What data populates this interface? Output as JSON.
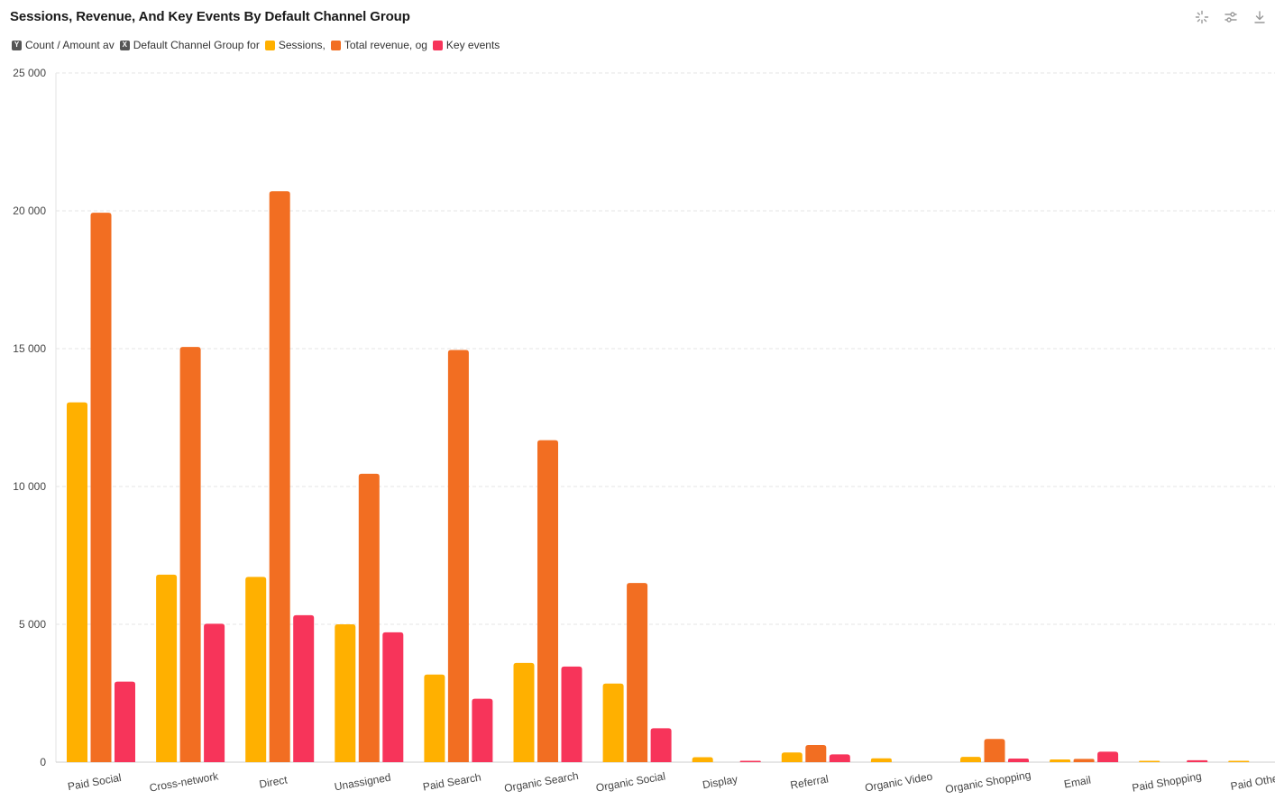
{
  "header": {
    "title": "Sessions, Revenue, And Key Events By Default Channel Group"
  },
  "toolbar": {
    "icons": [
      "sparkle-icon",
      "filter-sliders-icon",
      "download-icon"
    ]
  },
  "legend": {
    "y_axis_badge": "Y",
    "y_axis_label": "Count / Amount av",
    "x_axis_badge": "X",
    "x_axis_label": "Default Channel Group for",
    "series_labels": [
      "Sessions,",
      "Total revenue, og",
      "Key events"
    ]
  },
  "colors": {
    "sessions": "#FFB000",
    "revenue": "#F26E22",
    "key_events": "#F7345A",
    "grid": "#e6e6e6",
    "axis": "#cccccc"
  },
  "chart_data": {
    "type": "bar",
    "title": "Sessions, Revenue, And Key Events By Default Channel Group",
    "xlabel": "",
    "ylabel": "",
    "ylim": [
      0,
      25000
    ],
    "y_ticks": [
      0,
      5000,
      10000,
      15000,
      20000,
      25000
    ],
    "y_tick_labels": [
      "0",
      "5 000",
      "10 000",
      "15 000",
      "20 000",
      "25 000"
    ],
    "grid": true,
    "legend_position": "top-left",
    "categories": [
      "Paid Social",
      "Cross-network",
      "Direct",
      "Unassigned",
      "Paid Search",
      "Organic Search",
      "Organic Social",
      "Display",
      "Referral",
      "Organic Video",
      "Organic Shopping",
      "Email",
      "Paid Shopping",
      "Paid Other"
    ],
    "series": [
      {
        "name": "Sessions,",
        "color": "#FFB000",
        "values": [
          13050,
          6800,
          6720,
          5000,
          3180,
          3600,
          2850,
          180,
          350,
          140,
          190,
          100,
          10,
          15
        ]
      },
      {
        "name": "Total revenue, og",
        "color": "#F26E22",
        "values": [
          19930,
          15060,
          20710,
          10460,
          14950,
          11680,
          6500,
          0,
          620,
          0,
          840,
          120,
          0,
          0
        ]
      },
      {
        "name": "Key events",
        "color": "#F7345A",
        "values": [
          2920,
          5020,
          5330,
          4710,
          2300,
          3470,
          1230,
          50,
          280,
          0,
          130,
          380,
          70,
          0
        ]
      }
    ]
  }
}
